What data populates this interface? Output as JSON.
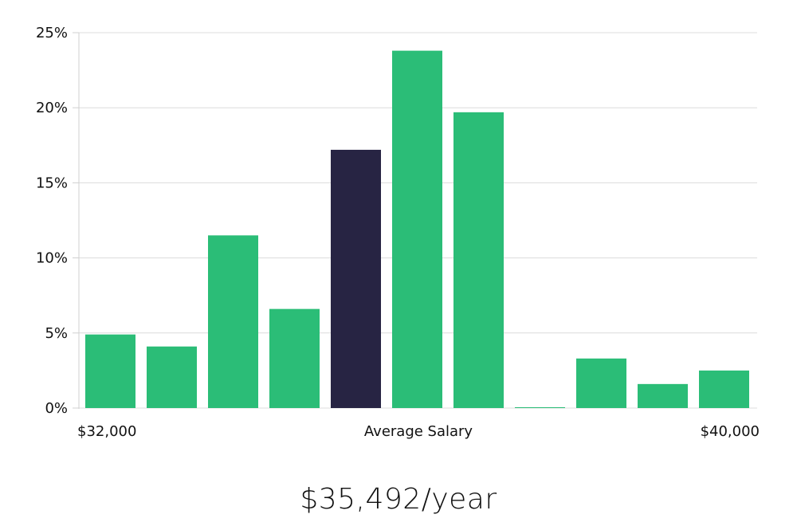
{
  "chart_data": {
    "type": "bar",
    "title": "",
    "xlabel": "Average Salary",
    "ylabel": "",
    "x_range_labels": [
      "$32,000",
      "$40,000"
    ],
    "ylim": [
      0,
      25
    ],
    "yticks": [
      0,
      5,
      10,
      15,
      20,
      25
    ],
    "ytick_labels": [
      "0%",
      "5%",
      "10%",
      "15%",
      "20%",
      "25%"
    ],
    "values": [
      4.9,
      4.1,
      11.5,
      6.6,
      17.2,
      23.8,
      19.7,
      0.05,
      3.3,
      1.6,
      2.5
    ],
    "highlight_index": 4,
    "colors": {
      "bar": "#2bbd77",
      "highlight": "#272443"
    },
    "grid": true
  },
  "summary": {
    "salary": "$35,492/year"
  }
}
